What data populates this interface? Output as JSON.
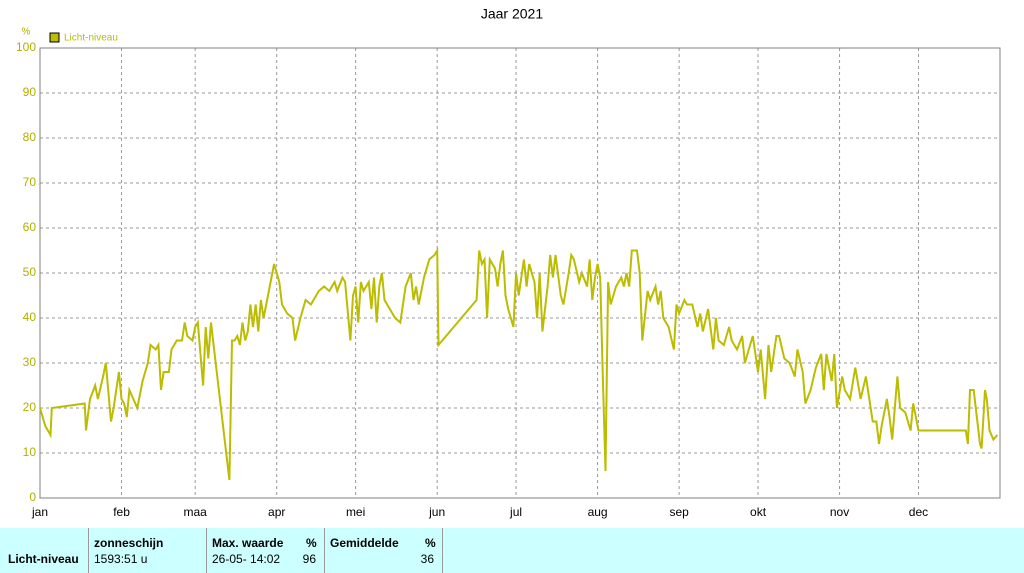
{
  "chart_data": {
    "type": "line",
    "title": "Jaar 2021",
    "y_unit": "%",
    "x": [
      0,
      2,
      4,
      4.5,
      17,
      17.5,
      19,
      21,
      22,
      24,
      25,
      27,
      28,
      30,
      31,
      32,
      33,
      34,
      37,
      39,
      41,
      42,
      44,
      45,
      46,
      47,
      49,
      50,
      52,
      54,
      55,
      56,
      58,
      59,
      60,
      62,
      63,
      64,
      65,
      66,
      70,
      72,
      73,
      74,
      75,
      76,
      77,
      78,
      79,
      80,
      81,
      82,
      83,
      84,
      85,
      89,
      91,
      92,
      94,
      96,
      97,
      99,
      101,
      103,
      105,
      106,
      108,
      110,
      112,
      113,
      115,
      116,
      118,
      119,
      120,
      121,
      122,
      123,
      125,
      126,
      127,
      128,
      129,
      130,
      131,
      135,
      137,
      139,
      141,
      142,
      143,
      144,
      146,
      148,
      150,
      151,
      151.5,
      166,
      167,
      168,
      169,
      170,
      171,
      173,
      174,
      175,
      176,
      177,
      178,
      180,
      181,
      182,
      184,
      185,
      186,
      187,
      188,
      189,
      190,
      191,
      193,
      194,
      195,
      196,
      198,
      199,
      201,
      202,
      203,
      205,
      206,
      208,
      209,
      210,
      211,
      212,
      213,
      214,
      215,
      216,
      217,
      219,
      221,
      222,
      223,
      224,
      225,
      227,
      228,
      229,
      231,
      232,
      234,
      235,
      236,
      237,
      239,
      241,
      242,
      243,
      245,
      246,
      248,
      250,
      251,
      252,
      254,
      256,
      257,
      258,
      260,
      262,
      263,
      265,
      267,
      268,
      270,
      271,
      273,
      274,
      275.7,
      277,
      278,
      280,
      281,
      283,
      285,
      287,
      288,
      290,
      291,
      293,
      295,
      297,
      298,
      299,
      301,
      302,
      303,
      305,
      306,
      308,
      310,
      312,
      314,
      316.6,
      318,
      319,
      320,
      322,
      323,
      324,
      326,
      327,
      329,
      331,
      332,
      334,
      352,
      352.8,
      353.6,
      355,
      356,
      357.4,
      358,
      359.3,
      360,
      361,
      362.5,
      364
    ],
    "series": [
      {
        "name": "Licht-niveau",
        "color": "#bcbc00",
        "values": [
          20,
          16,
          14,
          20,
          21,
          15,
          22,
          25,
          22,
          27,
          30,
          17,
          20,
          28,
          22,
          21,
          18,
          24,
          20,
          26,
          30,
          34,
          33,
          34,
          24,
          28,
          28,
          33,
          35,
          35,
          39,
          36,
          35,
          38,
          39,
          25,
          38,
          31,
          39,
          34,
          14,
          4,
          35,
          35,
          36,
          34,
          39,
          35,
          37,
          43,
          38,
          43,
          37,
          44,
          40,
          52,
          48,
          43,
          41,
          40,
          35,
          40,
          44,
          43,
          45,
          46,
          47,
          46,
          48,
          46,
          49,
          48,
          35,
          45,
          47,
          39,
          48,
          46,
          48,
          42,
          49,
          39,
          47,
          50,
          44,
          40,
          39,
          47,
          50,
          44,
          47,
          43,
          49,
          53,
          54,
          55,
          34,
          44,
          55,
          52,
          53,
          40,
          53,
          51,
          47,
          52,
          55,
          45,
          42,
          38,
          50,
          45,
          53,
          47,
          52,
          50,
          48,
          40,
          50,
          37,
          47,
          54,
          49,
          54,
          45,
          43,
          50,
          54,
          53,
          48,
          50,
          47,
          53,
          44,
          49,
          52,
          49,
          27,
          6,
          48,
          43,
          47,
          49,
          47,
          50,
          47,
          55,
          55,
          50,
          35,
          46,
          44,
          47,
          43,
          46,
          40,
          38,
          33,
          43,
          41,
          44,
          43,
          43,
          38,
          41,
          37,
          42,
          33,
          40,
          35,
          34,
          38,
          35,
          33,
          36,
          30,
          34,
          36,
          28,
          33,
          22,
          34,
          28,
          36,
          36,
          31,
          30,
          27,
          33,
          28,
          21,
          24,
          29,
          32,
          24,
          32,
          26,
          32,
          20,
          27,
          24,
          22,
          29,
          22,
          27,
          17,
          17,
          12,
          16,
          22,
          18,
          13,
          27,
          20,
          19,
          15,
          21,
          15,
          15,
          12,
          24,
          24,
          19,
          12,
          11,
          24,
          22,
          15,
          13,
          14
        ]
      }
    ],
    "xlim": [
      0,
      365
    ],
    "xticks": [
      {
        "value": 0,
        "label": "jan"
      },
      {
        "value": 31,
        "label": "feb"
      },
      {
        "value": 59,
        "label": "maa"
      },
      {
        "value": 90,
        "label": "apr"
      },
      {
        "value": 120,
        "label": "mei"
      },
      {
        "value": 151,
        "label": "jun"
      },
      {
        "value": 181,
        "label": "jul"
      },
      {
        "value": 212,
        "label": "aug"
      },
      {
        "value": 243,
        "label": "sep"
      },
      {
        "value": 273,
        "label": "okt"
      },
      {
        "value": 304,
        "label": "nov"
      },
      {
        "value": 334,
        "label": "dec"
      }
    ],
    "ylim": [
      0,
      100
    ],
    "yticks": [
      0,
      10,
      20,
      30,
      40,
      50,
      60,
      70,
      80,
      90,
      100
    ],
    "grid": true,
    "legend": "top-left"
  },
  "table": {
    "headers": [
      "zonneschijn",
      "Max. waarde",
      "%",
      "Gemiddelde",
      "%"
    ],
    "row": {
      "label": "Licht-niveau",
      "sunshine": "1593:51 u",
      "max_time": "26-05- 14:02",
      "max": 96,
      "avg": 36
    }
  }
}
